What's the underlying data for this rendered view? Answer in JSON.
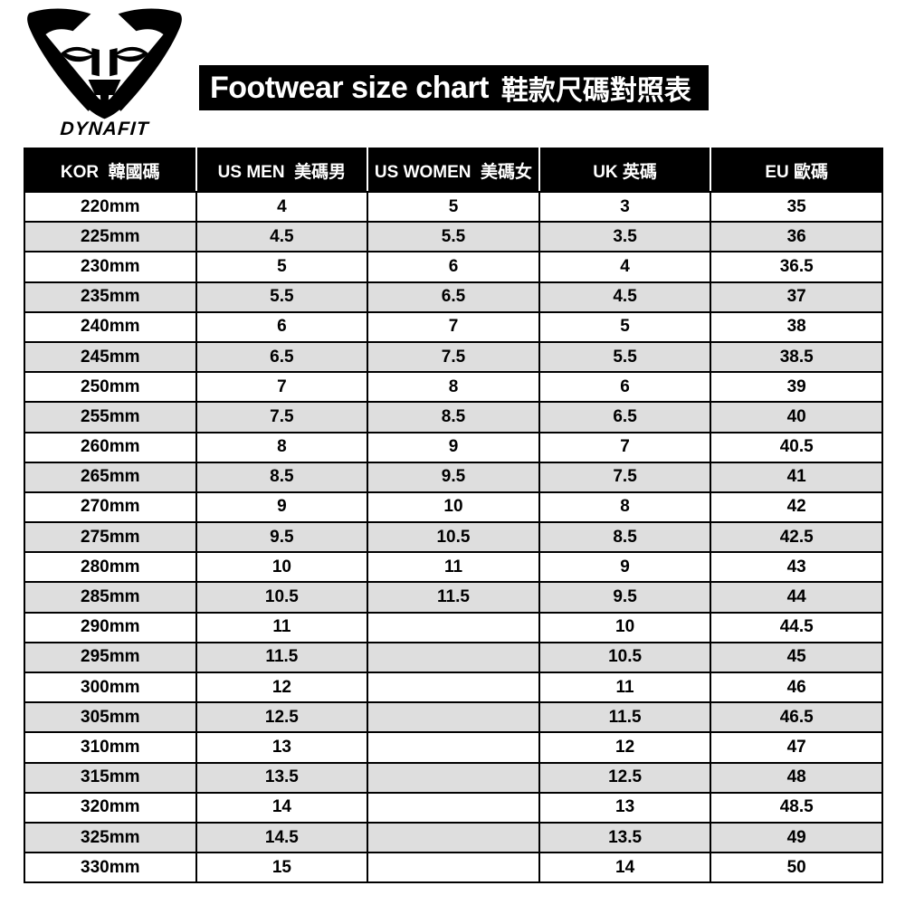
{
  "brand": {
    "wordmark": "DYNAFIT",
    "logo": "dynafit-snow-leopard"
  },
  "title": {
    "en": "Footwear size chart",
    "zh": "鞋款尺碼對照表"
  },
  "size_table": {
    "headers": [
      "KOR  韓國碼",
      "US MEN  美碼男",
      "US WOMEN  美碼女",
      "UK 英碼",
      "EU 歐碼"
    ],
    "rows": [
      [
        "220mm",
        "4",
        "5",
        "3",
        "35"
      ],
      [
        "225mm",
        "4.5",
        "5.5",
        "3.5",
        "36"
      ],
      [
        "230mm",
        "5",
        "6",
        "4",
        "36.5"
      ],
      [
        "235mm",
        "5.5",
        "6.5",
        "4.5",
        "37"
      ],
      [
        "240mm",
        "6",
        "7",
        "5",
        "38"
      ],
      [
        "245mm",
        "6.5",
        "7.5",
        "5.5",
        "38.5"
      ],
      [
        "250mm",
        "7",
        "8",
        "6",
        "39"
      ],
      [
        "255mm",
        "7.5",
        "8.5",
        "6.5",
        "40"
      ],
      [
        "260mm",
        "8",
        "9",
        "7",
        "40.5"
      ],
      [
        "265mm",
        "8.5",
        "9.5",
        "7.5",
        "41"
      ],
      [
        "270mm",
        "9",
        "10",
        "8",
        "42"
      ],
      [
        "275mm",
        "9.5",
        "10.5",
        "8.5",
        "42.5"
      ],
      [
        "280mm",
        "10",
        "11",
        "9",
        "43"
      ],
      [
        "285mm",
        "10.5",
        "11.5",
        "9.5",
        "44"
      ],
      [
        "290mm",
        "11",
        "",
        "10",
        "44.5"
      ],
      [
        "295mm",
        "11.5",
        "",
        "10.5",
        "45"
      ],
      [
        "300mm",
        "12",
        "",
        "11",
        "46"
      ],
      [
        "305mm",
        "12.5",
        "",
        "11.5",
        "46.5"
      ],
      [
        "310mm",
        "13",
        "",
        "12",
        "47"
      ],
      [
        "315mm",
        "13.5",
        "",
        "12.5",
        "48"
      ],
      [
        "320mm",
        "14",
        "",
        "13",
        "48.5"
      ],
      [
        "325mm",
        "14.5",
        "",
        "13.5",
        "49"
      ],
      [
        "330mm",
        "15",
        "",
        "14",
        "50"
      ]
    ]
  },
  "colors": {
    "banner_bg": "#000000",
    "banner_text": "#ffffff",
    "row_alt_bg": "#dedede",
    "border": "#000000"
  }
}
